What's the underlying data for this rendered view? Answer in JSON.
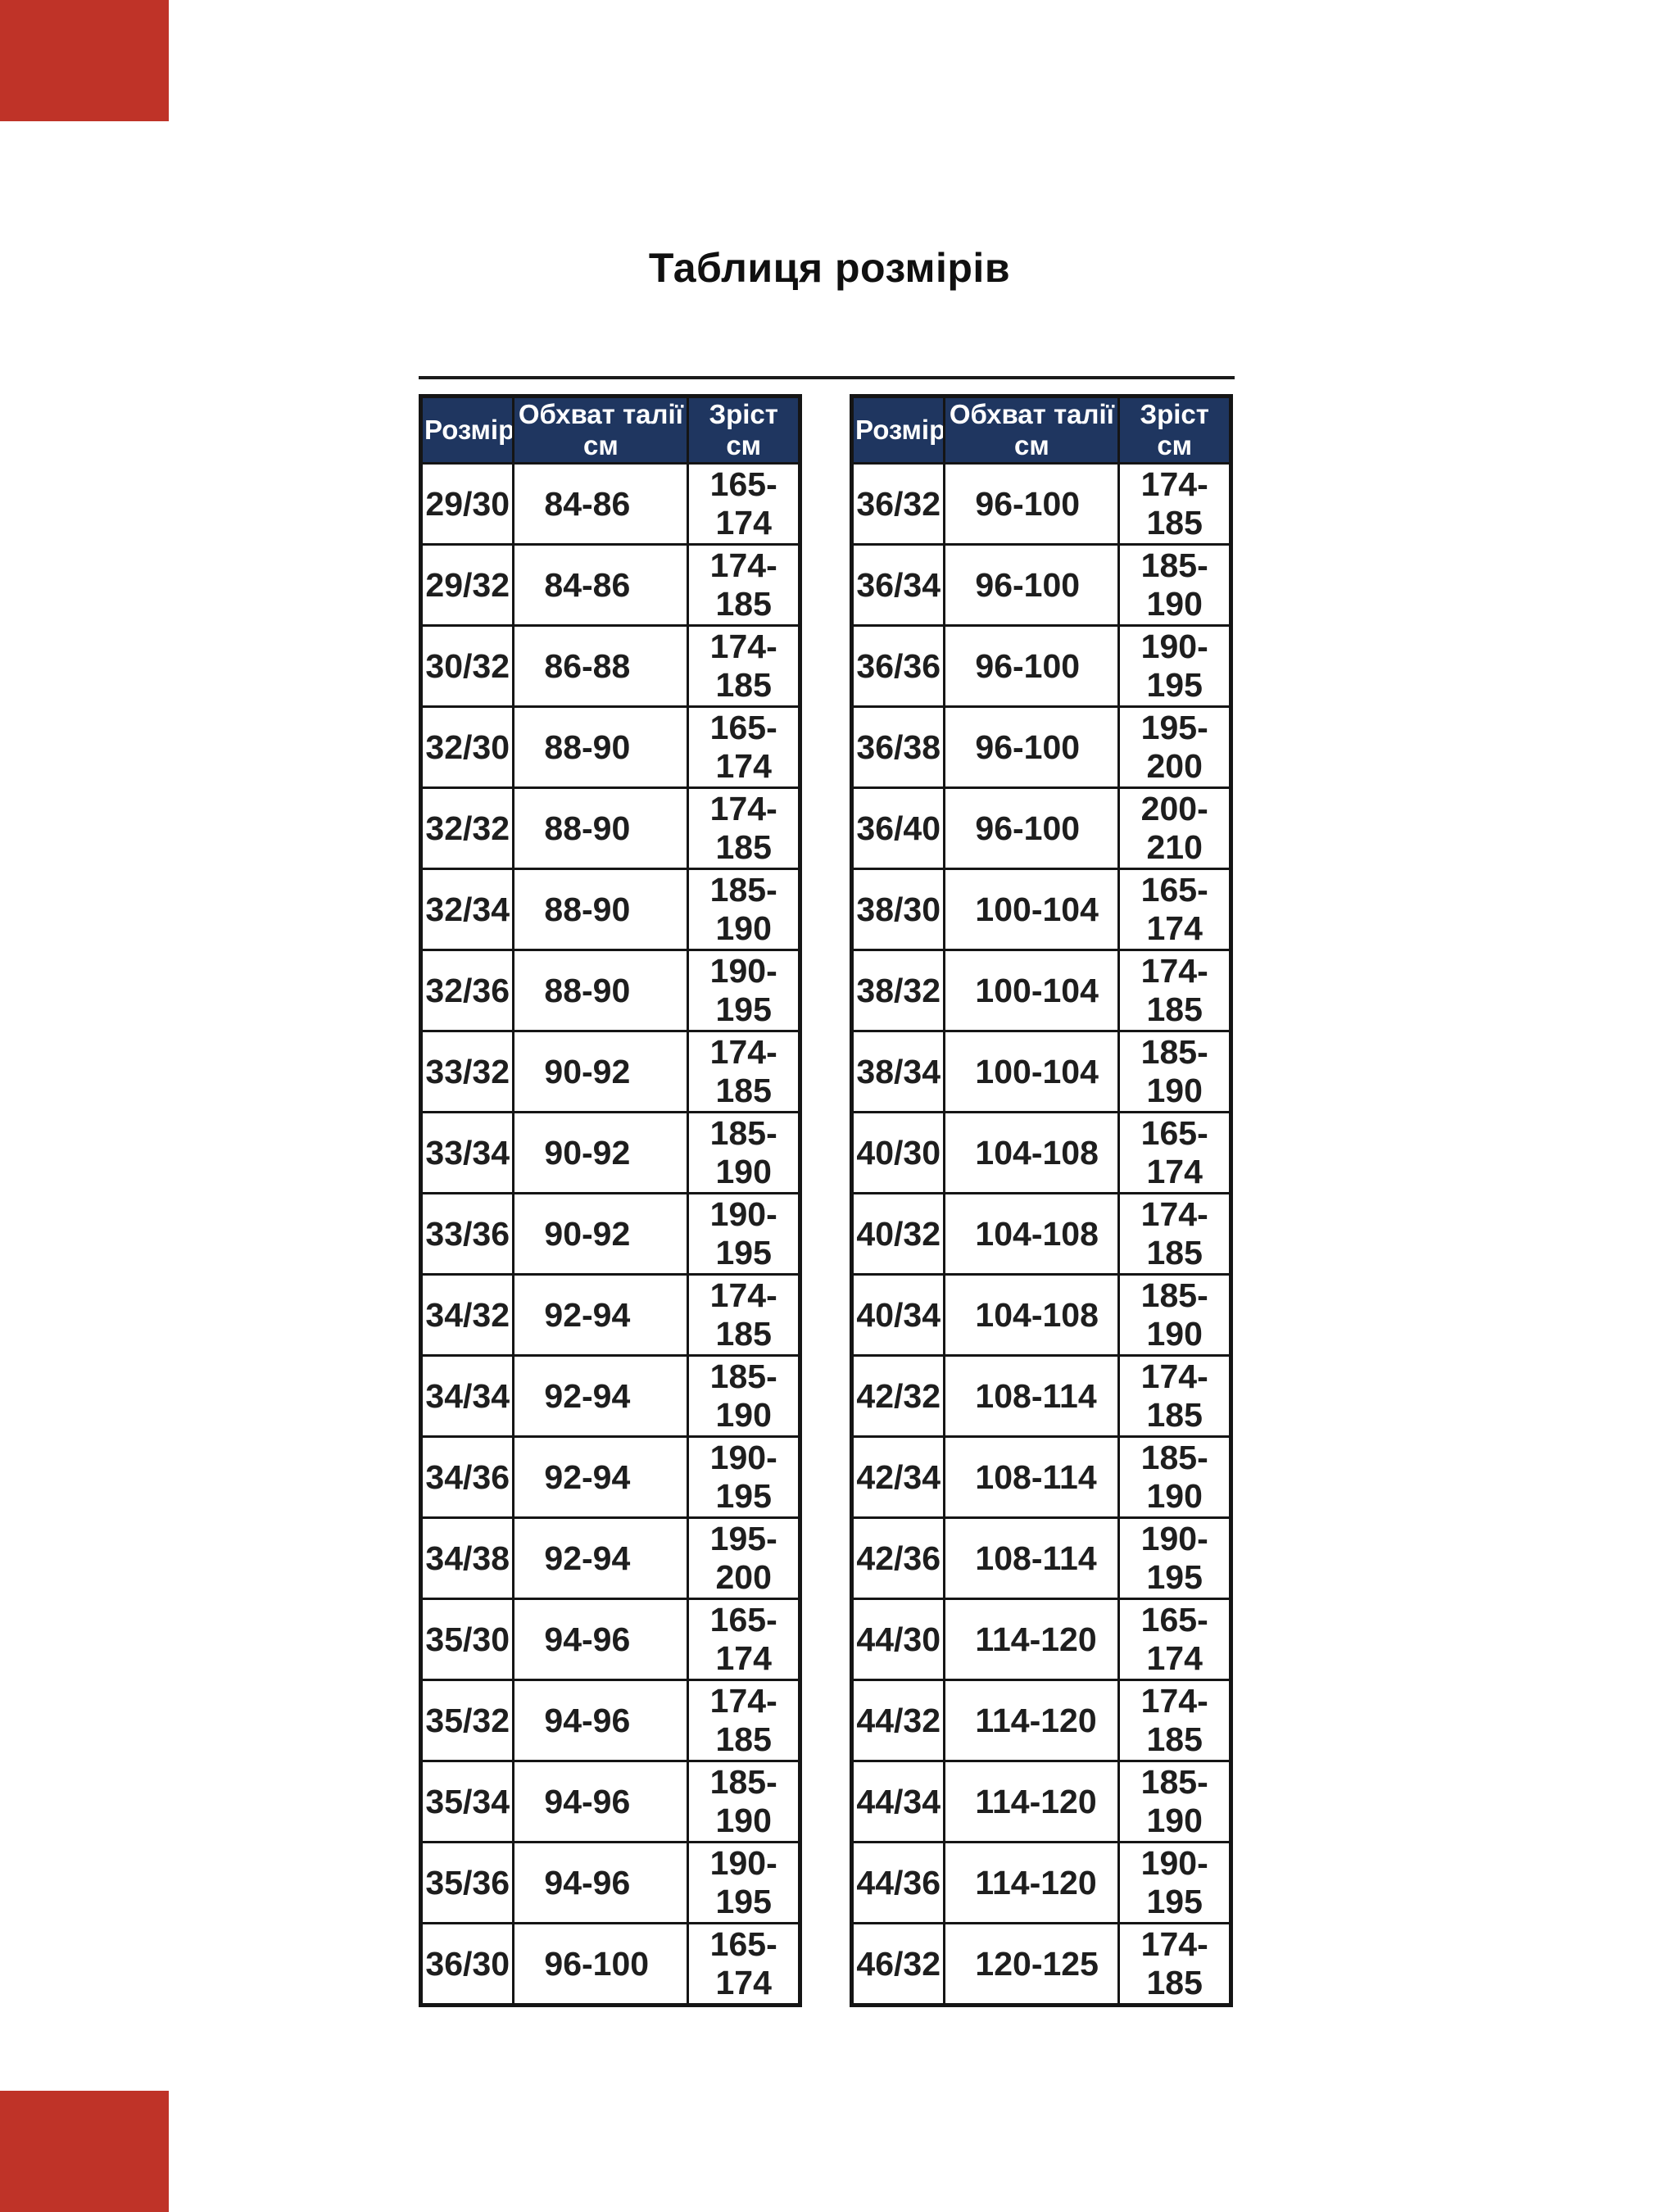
{
  "title": "Таблиця розмірів",
  "colors": {
    "page_bg": "#ffffff",
    "accent_red": "#bf3328",
    "header_bg": "#1f3660",
    "header_fg": "#ffffff",
    "size_cell_bg": "#fff200",
    "size_cell_fg": "#141d37",
    "body_fg": "#1e1e1e"
  },
  "columns": [
    "Розмір",
    "Обхват талії см",
    "Зріст см"
  ],
  "left_table_rows": [
    {
      "size": "29/30",
      "waist": "84-86",
      "height": "165-174"
    },
    {
      "size": "29/32",
      "waist": "84-86",
      "height": "174-185"
    },
    {
      "size": "30/32",
      "waist": "86-88",
      "height": "174-185"
    },
    {
      "size": "32/30",
      "waist": "88-90",
      "height": "165-174"
    },
    {
      "size": "32/32",
      "waist": "88-90",
      "height": "174-185"
    },
    {
      "size": "32/34",
      "waist": "88-90",
      "height": "185-190"
    },
    {
      "size": "32/36",
      "waist": "88-90",
      "height": "190-195"
    },
    {
      "size": "33/32",
      "waist": "90-92",
      "height": "174-185"
    },
    {
      "size": "33/34",
      "waist": "90-92",
      "height": "185-190"
    },
    {
      "size": "33/36",
      "waist": "90-92",
      "height": "190-195"
    },
    {
      "size": "34/32",
      "waist": "92-94",
      "height": "174-185"
    },
    {
      "size": "34/34",
      "waist": "92-94",
      "height": "185-190"
    },
    {
      "size": "34/36",
      "waist": "92-94",
      "height": "190-195"
    },
    {
      "size": "34/38",
      "waist": "92-94",
      "height": "195-200"
    },
    {
      "size": "35/30",
      "waist": "94-96",
      "height": "165-174"
    },
    {
      "size": "35/32",
      "waist": "94-96",
      "height": "174-185"
    },
    {
      "size": "35/34",
      "waist": "94-96",
      "height": "185-190"
    },
    {
      "size": "35/36",
      "waist": "94-96",
      "height": "190-195"
    },
    {
      "size": "36/30",
      "waist": "96-100",
      "height": "165-174"
    }
  ],
  "right_table_rows": [
    {
      "size": "36/32",
      "waist": "96-100",
      "height": "174-185"
    },
    {
      "size": "36/34",
      "waist": "96-100",
      "height": "185-190"
    },
    {
      "size": "36/36",
      "waist": "96-100",
      "height": "190-195"
    },
    {
      "size": "36/38",
      "waist": "96-100",
      "height": "195-200"
    },
    {
      "size": "36/40",
      "waist": "96-100",
      "height": "200-210"
    },
    {
      "size": "38/30",
      "waist": "100-104",
      "height": "165-174"
    },
    {
      "size": "38/32",
      "waist": "100-104",
      "height": "174-185"
    },
    {
      "size": "38/34",
      "waist": "100-104",
      "height": "185-190"
    },
    {
      "size": "40/30",
      "waist": "104-108",
      "height": "165-174"
    },
    {
      "size": "40/32",
      "waist": "104-108",
      "height": "174-185"
    },
    {
      "size": "40/34",
      "waist": "104-108",
      "height": "185-190"
    },
    {
      "size": "42/32",
      "waist": "108-114",
      "height": "174-185"
    },
    {
      "size": "42/34",
      "waist": "108-114",
      "height": "185-190"
    },
    {
      "size": "42/36",
      "waist": "108-114",
      "height": "190-195"
    },
    {
      "size": "44/30",
      "waist": "114-120",
      "height": "165-174"
    },
    {
      "size": "44/32",
      "waist": "114-120",
      "height": "174-185"
    },
    {
      "size": "44/34",
      "waist": "114-120",
      "height": "185-190"
    },
    {
      "size": "44/36",
      "waist": "114-120",
      "height": "190-195"
    },
    {
      "size": "46/32",
      "waist": "120-125",
      "height": "174-185"
    }
  ]
}
